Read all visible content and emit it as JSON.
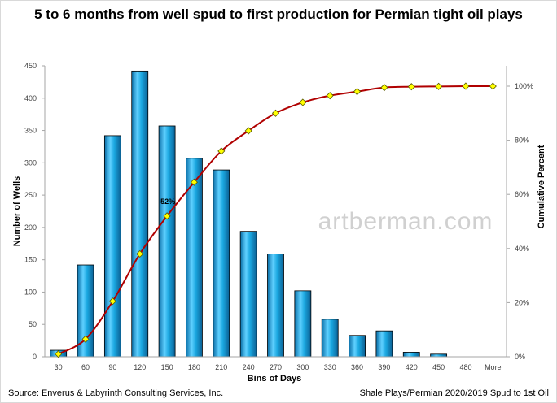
{
  "chart_data": {
    "type": "bar",
    "title": "5 to 6 months from well spud to first production for Permian tight oil plays",
    "xlabel": "Bins of Days",
    "ylabel": "Number of Wells",
    "y2label": "Cumulative Percent",
    "categories": [
      "30",
      "60",
      "90",
      "120",
      "150",
      "180",
      "210",
      "240",
      "270",
      "300",
      "330",
      "360",
      "390",
      "420",
      "450",
      "480",
      "More"
    ],
    "ylim": [
      0,
      450
    ],
    "yticks": [
      0,
      50,
      100,
      150,
      200,
      250,
      300,
      350,
      400,
      450
    ],
    "y2lim": [
      0,
      1.2
    ],
    "y2ticks": [
      0,
      0.2,
      0.4,
      0.6,
      0.8,
      1.0
    ],
    "y2ticklabels": [
      "0%",
      "20%",
      "40%",
      "60%",
      "80%",
      "100%"
    ],
    "series": [
      {
        "type": "bar",
        "axis": "left",
        "color": "#1aa7e0",
        "values": [
          10,
          142,
          342,
          442,
          357,
          307,
          289,
          194,
          159,
          102,
          58,
          33,
          40,
          7,
          4,
          0,
          0
        ]
      },
      {
        "type": "line",
        "axis": "right",
        "color": "#b00000",
        "marker_color": "#ffff00",
        "values": [
          0.01,
          0.065,
          0.205,
          0.38,
          0.52,
          0.645,
          0.76,
          0.835,
          0.9,
          0.94,
          0.965,
          0.98,
          0.995,
          0.998,
          0.999,
          1.0,
          1.0
        ]
      }
    ],
    "annotations": [
      {
        "text": "52%",
        "category": "150",
        "value": 0.52
      }
    ],
    "watermark": "artberman.com",
    "grid": false,
    "legend": "none"
  },
  "footer": {
    "source": "Source: Enverus & Labyrinth Consulting Services, Inc.",
    "note": "Shale Plays/Permian 2020/2019 Spud to 1st Oil"
  }
}
